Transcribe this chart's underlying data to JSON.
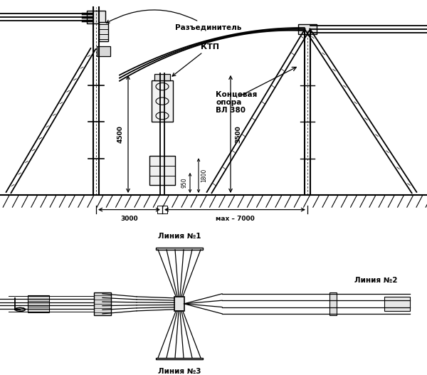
{
  "bg_color": "#ffffff",
  "line_color": "#000000",
  "fig_width": 6.0,
  "fig_height": 5.27,
  "dpi": 100,
  "labels": {
    "razed": "Разъединитель",
    "ktp": "КТП",
    "konc_opor": "Концевая\nопора\nВЛ 380",
    "dim_4500": "4500",
    "dim_3500": "3500",
    "dim_950": "950",
    "dim_1800": "1800",
    "dim_3000": "3000",
    "dim_max7000": "мах – 7000",
    "liniya1": "Линия №1",
    "liniya2": "Линия №2",
    "liniya3": "Линия №3"
  }
}
